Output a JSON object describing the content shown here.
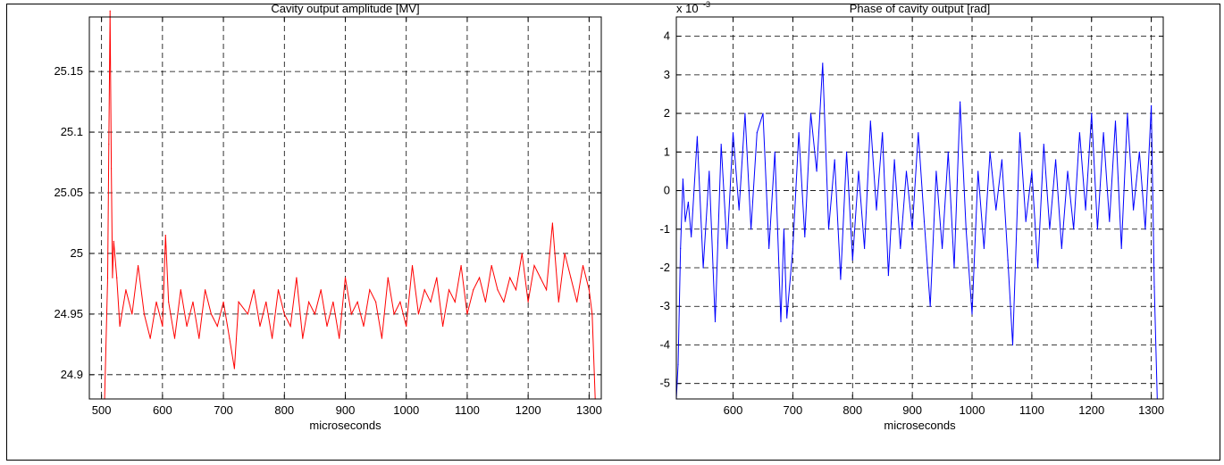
{
  "chart_data": [
    {
      "type": "line",
      "title": "Cavity output amplitude [MV]",
      "xlabel": "microseconds",
      "ylabel": "",
      "xlim": [
        480,
        1320
      ],
      "ylim": [
        24.88,
        25.195
      ],
      "xticks": [
        500,
        600,
        700,
        800,
        900,
        1000,
        1100,
        1200,
        1300
      ],
      "yticks": [
        24.9,
        24.95,
        25,
        25.05,
        25.1,
        25.15
      ],
      "ytick_labels": [
        "24.9",
        "24.95",
        "25",
        "25.05",
        "25.1",
        "25.15"
      ],
      "grid": true,
      "color": "#ff0000",
      "series": [
        {
          "x": [
            505,
            510,
            512,
            514,
            516,
            518,
            520,
            525,
            530,
            540,
            550,
            560,
            570,
            580,
            590,
            600,
            605,
            610,
            620,
            630,
            640,
            650,
            660,
            670,
            680,
            690,
            700,
            710,
            718,
            725,
            740,
            750,
            760,
            770,
            780,
            790,
            800,
            810,
            820,
            830,
            840,
            850,
            860,
            870,
            880,
            890,
            900,
            910,
            920,
            930,
            940,
            950,
            960,
            970,
            980,
            990,
            1000,
            1010,
            1020,
            1030,
            1040,
            1050,
            1060,
            1070,
            1080,
            1090,
            1100,
            1110,
            1120,
            1130,
            1140,
            1150,
            1160,
            1170,
            1180,
            1190,
            1200,
            1210,
            1220,
            1230,
            1240,
            1250,
            1260,
            1270,
            1280,
            1290,
            1300,
            1305,
            1310
          ],
          "y": [
            24.88,
            24.98,
            25.09,
            25.2,
            25.07,
            24.98,
            25.01,
            24.98,
            24.94,
            24.97,
            24.95,
            24.99,
            24.95,
            24.93,
            24.96,
            24.94,
            25.015,
            24.96,
            24.93,
            24.97,
            24.94,
            24.96,
            24.93,
            24.97,
            24.95,
            24.94,
            24.96,
            24.93,
            24.905,
            24.96,
            24.95,
            24.97,
            24.94,
            24.96,
            24.93,
            24.97,
            24.95,
            24.94,
            24.98,
            24.93,
            24.96,
            24.95,
            24.97,
            24.94,
            24.96,
            24.93,
            24.98,
            24.95,
            24.96,
            24.94,
            24.97,
            24.96,
            24.93,
            24.98,
            24.95,
            24.96,
            24.94,
            24.99,
            24.95,
            24.97,
            24.96,
            24.98,
            24.94,
            24.97,
            24.96,
            24.99,
            24.95,
            24.97,
            24.98,
            24.96,
            24.99,
            24.97,
            24.96,
            24.98,
            24.97,
            25.0,
            24.96,
            24.99,
            24.98,
            24.97,
            25.025,
            24.96,
            25.0,
            24.98,
            24.96,
            24.99,
            24.97,
            24.95,
            24.88
          ]
        }
      ]
    },
    {
      "type": "line",
      "title": "Phase of cavity output [rad]",
      "xlabel": "microseconds",
      "ylabel": "",
      "exponent_base": "x 10",
      "exponent_power": "-3",
      "xlim": [
        505,
        1320
      ],
      "ylim": [
        -5.4,
        4.5
      ],
      "xticks": [
        600,
        700,
        800,
        900,
        1000,
        1100,
        1200,
        1300
      ],
      "yticks": [
        -5,
        -4,
        -3,
        -2,
        -1,
        0,
        1,
        2,
        3,
        4
      ],
      "ytick_labels": [
        "-5",
        "-4",
        "-3",
        "-2",
        "-1",
        "0",
        "1",
        "2",
        "3",
        "4"
      ],
      "grid": true,
      "color": "#0000ff",
      "series": [
        {
          "x": [
            505,
            508,
            512,
            516,
            520,
            525,
            530,
            540,
            550,
            560,
            570,
            580,
            590,
            600,
            610,
            620,
            630,
            640,
            650,
            660,
            670,
            680,
            685,
            690,
            700,
            710,
            720,
            730,
            740,
            750,
            760,
            770,
            780,
            790,
            800,
            810,
            820,
            830,
            840,
            850,
            860,
            870,
            880,
            890,
            900,
            910,
            920,
            930,
            940,
            950,
            960,
            970,
            980,
            990,
            1000,
            1010,
            1020,
            1030,
            1040,
            1050,
            1060,
            1068,
            1080,
            1090,
            1100,
            1110,
            1120,
            1130,
            1140,
            1150,
            1160,
            1170,
            1180,
            1190,
            1200,
            1210,
            1220,
            1230,
            1240,
            1250,
            1260,
            1270,
            1280,
            1290,
            1300,
            1305,
            1310
          ],
          "y": [
            -5.4,
            -4.5,
            -1.5,
            0.3,
            -0.8,
            -0.3,
            -1.2,
            1.4,
            -2.0,
            0.5,
            -3.4,
            1.2,
            -1.5,
            1.5,
            -0.5,
            2.0,
            -1.0,
            1.5,
            2.0,
            -1.5,
            1.0,
            -3.4,
            -1.0,
            -3.3,
            -1.5,
            1.5,
            -1.2,
            2.0,
            0.5,
            3.3,
            -1.0,
            0.8,
            -2.3,
            1.0,
            -1.8,
            0.5,
            -1.5,
            1.8,
            -0.5,
            1.5,
            -2.2,
            0.8,
            -1.5,
            0.5,
            -1.0,
            1.5,
            -0.8,
            -3.0,
            0.5,
            -1.5,
            1.0,
            -2.0,
            2.3,
            -1.0,
            -3.2,
            0.5,
            -1.5,
            1.0,
            -0.5,
            0.8,
            -1.8,
            -4.0,
            1.5,
            -0.8,
            0.5,
            -2.0,
            1.2,
            -1.0,
            0.8,
            -1.5,
            0.5,
            -1.0,
            1.5,
            -0.5,
            2.0,
            -1.0,
            1.5,
            -0.8,
            1.8,
            -1.5,
            2.0,
            -0.5,
            1.0,
            -1.0,
            2.2,
            -2.5,
            -5.4
          ]
        }
      ]
    }
  ]
}
